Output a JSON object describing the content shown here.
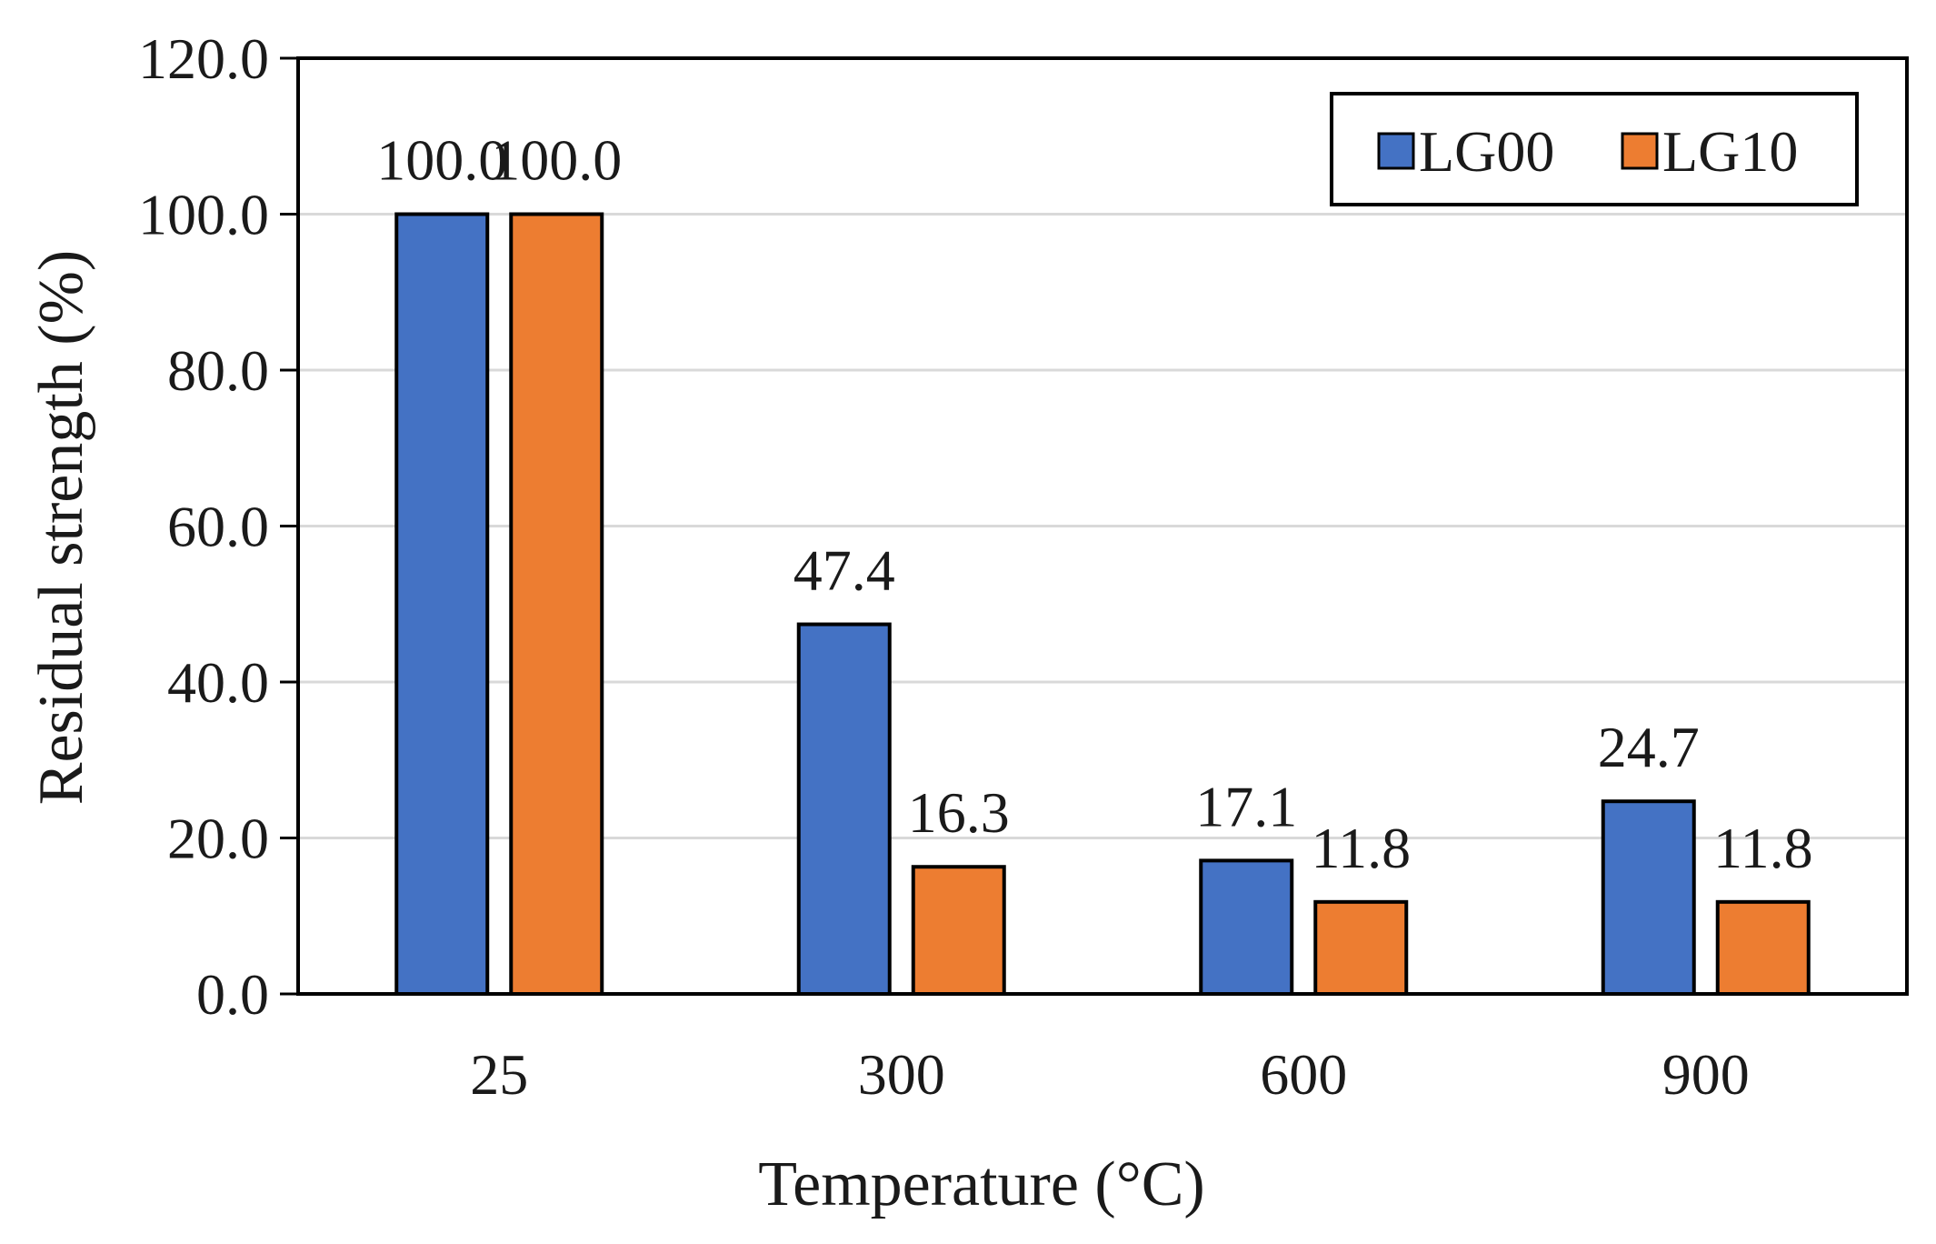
{
  "chart_data": {
    "type": "bar",
    "title": "",
    "xlabel": "Temperature (°C)",
    "ylabel": "Residual  strength (%)",
    "categories": [
      "25",
      "300",
      "600",
      "900"
    ],
    "series": [
      {
        "name": "LG00",
        "color": "#4472C4",
        "values": [
          100.0,
          47.4,
          17.1,
          24.7
        ],
        "labels": [
          "100.0",
          "47.4",
          "17.1",
          "24.7"
        ]
      },
      {
        "name": "LG10",
        "color": "#ED7D31",
        "values": [
          100.0,
          16.3,
          11.8,
          11.8
        ],
        "labels": [
          "100.0",
          "16.3",
          "11.8",
          "11.8"
        ]
      }
    ],
    "ylim": [
      0,
      120
    ],
    "yticks": [
      0,
      20,
      40,
      60,
      80,
      100,
      120
    ],
    "ytick_labels": [
      "0.0",
      "20.0",
      "40.0",
      "60.0",
      "80.0",
      "100.0",
      "120.0"
    ],
    "grid": true,
    "legend_position": "top-right"
  }
}
